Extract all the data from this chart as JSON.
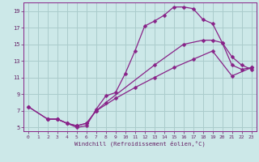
{
  "xlabel": "Windchill (Refroidissement éolien,°C)",
  "background_color": "#cce8e8",
  "grid_color": "#aacccc",
  "line_color": "#882288",
  "xlim": [
    -0.5,
    23.5
  ],
  "ylim": [
    4.5,
    20.0
  ],
  "yticks": [
    5,
    7,
    9,
    11,
    13,
    15,
    17,
    19
  ],
  "xticks": [
    0,
    1,
    2,
    3,
    4,
    5,
    6,
    7,
    8,
    9,
    10,
    11,
    12,
    13,
    14,
    15,
    16,
    17,
    18,
    19,
    20,
    21,
    22,
    23
  ],
  "line1_x": [
    0,
    2,
    3,
    4,
    5,
    6,
    7,
    8,
    9,
    10,
    11,
    12,
    13,
    14,
    15,
    16,
    17,
    18,
    19,
    20,
    21,
    22,
    23
  ],
  "line1_y": [
    7.5,
    6.0,
    6.0,
    5.5,
    5.0,
    5.2,
    7.2,
    8.8,
    9.2,
    11.5,
    14.2,
    17.2,
    17.8,
    18.5,
    19.5,
    19.5,
    19.3,
    18.0,
    17.5,
    15.2,
    13.5,
    12.5,
    12.0
  ],
  "line2_x": [
    0,
    2,
    3,
    4,
    5,
    6,
    7,
    8,
    13,
    16,
    18,
    19,
    20,
    21,
    22,
    23
  ],
  "line2_y": [
    7.5,
    6.0,
    6.0,
    5.5,
    5.2,
    5.5,
    7.0,
    8.0,
    12.5,
    15.0,
    15.5,
    15.5,
    15.2,
    12.5,
    12.0,
    12.2
  ],
  "line3_x": [
    2,
    3,
    4,
    5,
    6,
    7,
    9,
    11,
    13,
    15,
    17,
    19,
    21,
    23
  ],
  "line3_y": [
    6.0,
    6.0,
    5.5,
    5.2,
    5.5,
    7.0,
    8.5,
    9.8,
    11.0,
    12.2,
    13.2,
    14.2,
    11.2,
    12.2
  ]
}
